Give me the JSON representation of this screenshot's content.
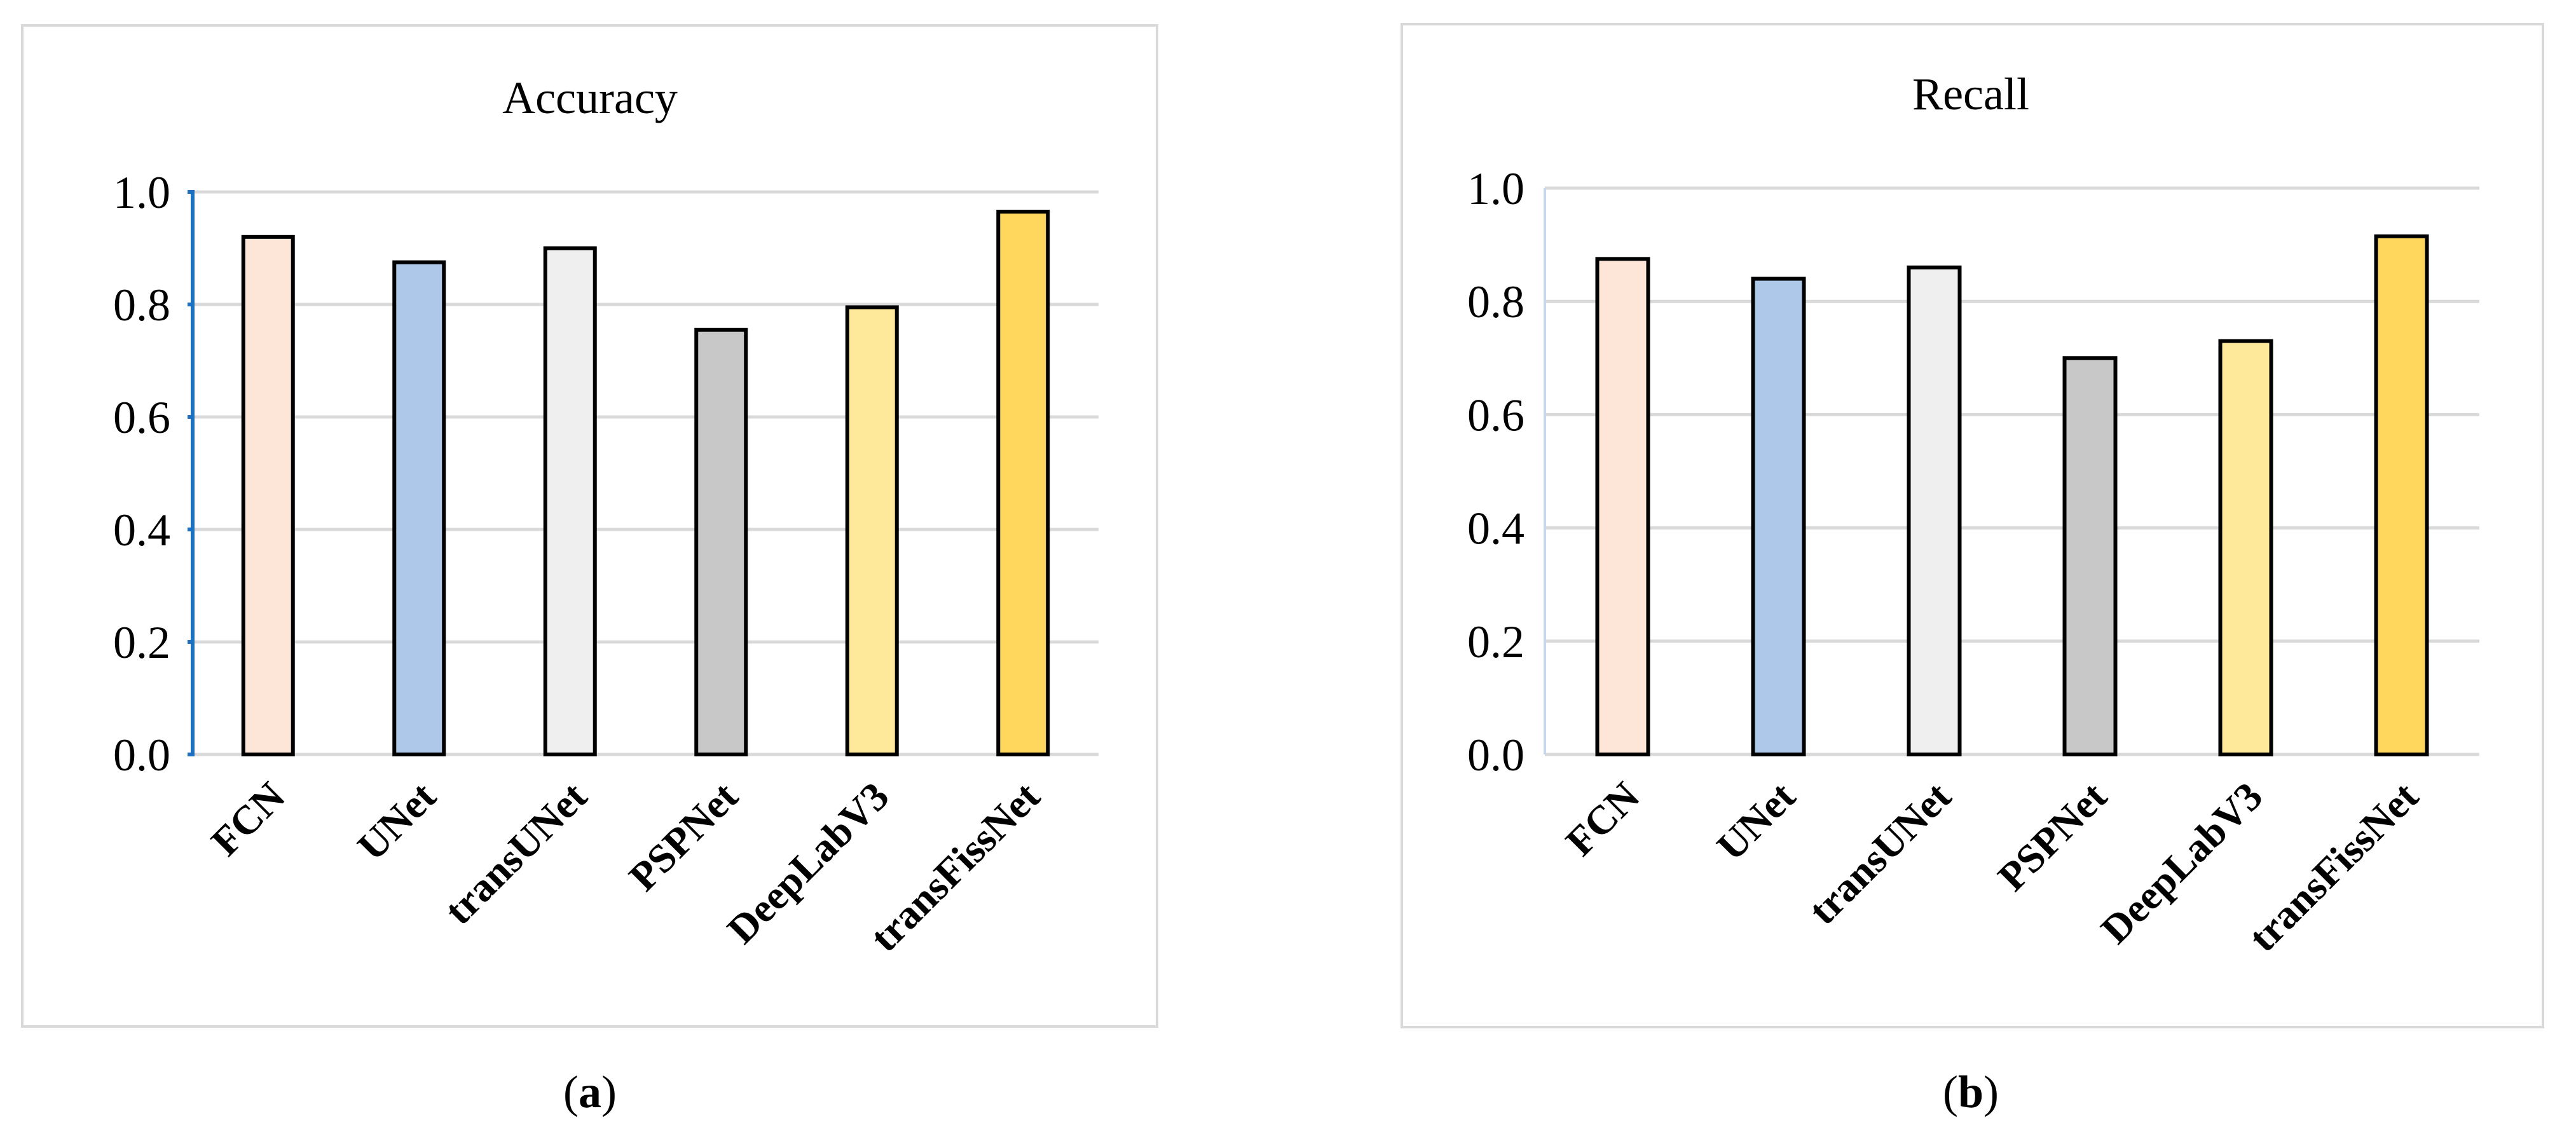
{
  "chart_data": [
    {
      "type": "bar",
      "title": "Accuracy",
      "caption": {
        "open": "(",
        "letter": "a",
        "close": ")"
      },
      "categories": [
        "FCN",
        "UNet",
        "transUNet",
        "PSPNet",
        "DeepLabV3",
        "transFissNet"
      ],
      "values": [
        0.92,
        0.875,
        0.9,
        0.755,
        0.795,
        0.965
      ],
      "colors": [
        "#fde6d8",
        "#aec8ea",
        "#efefef",
        "#c8c8c8",
        "#fee89a",
        "#ffd75d"
      ],
      "ylim": [
        0,
        1.0
      ],
      "yticks": [
        "0.0",
        "0.2",
        "0.4",
        "0.6",
        "0.8",
        "1.0"
      ],
      "axis_color": "#1f6fc0",
      "grid": true,
      "xlabel": "",
      "ylabel": ""
    },
    {
      "type": "bar",
      "title": "Recall",
      "caption": {
        "open": "(",
        "letter": "b",
        "close": ")"
      },
      "categories": [
        "FCN",
        "UNet",
        "transUNet",
        "PSPNet",
        "DeepLabV3",
        "transFissNet"
      ],
      "values": [
        0.875,
        0.84,
        0.86,
        0.7,
        0.73,
        0.915
      ],
      "colors": [
        "#fde6d8",
        "#aec8ea",
        "#efefef",
        "#c8c8c8",
        "#fee89a",
        "#ffd75d"
      ],
      "ylim": [
        0,
        1.0
      ],
      "yticks": [
        "0.0",
        "0.2",
        "0.4",
        "0.6",
        "0.8",
        "1.0"
      ],
      "axis_color": "#c8d8ec",
      "grid": true,
      "xlabel": "",
      "ylabel": ""
    }
  ]
}
